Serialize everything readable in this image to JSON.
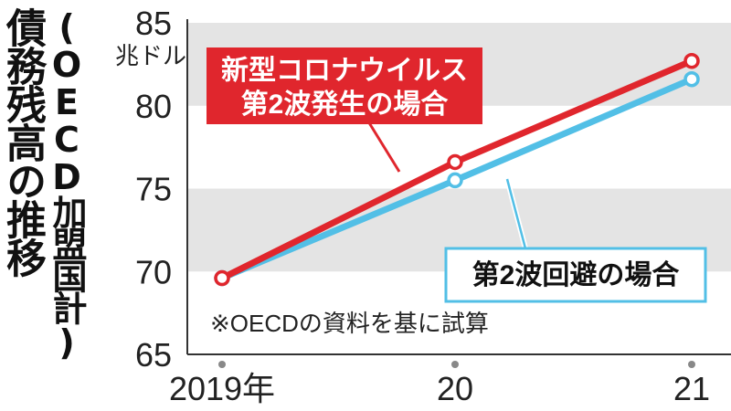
{
  "title": "債務残高の推移",
  "subtitle": "(OECD加盟国計)",
  "chart_data": {
    "type": "line",
    "x": [
      "2019年",
      "20",
      "21"
    ],
    "unit": "兆ドル",
    "ylim": [
      65,
      85
    ],
    "yticks": [
      65,
      70,
      75,
      80,
      85
    ],
    "grid": "alternating horizontal bands",
    "series": [
      {
        "name": "新型コロナウイルス第2波発生の場合",
        "label_lines": [
          "新型コロナウイルス",
          "第2波発生の場合"
        ],
        "values": [
          69.6,
          76.6,
          82.7
        ],
        "color": "#e0262d"
      },
      {
        "name": "第2波回避の場合",
        "label_lines": [
          "第2波回避の場合"
        ],
        "values": [
          69.6,
          75.5,
          81.6
        ],
        "color": "#52bfe6"
      }
    ],
    "note": "※OECDの資料を基に試算"
  }
}
